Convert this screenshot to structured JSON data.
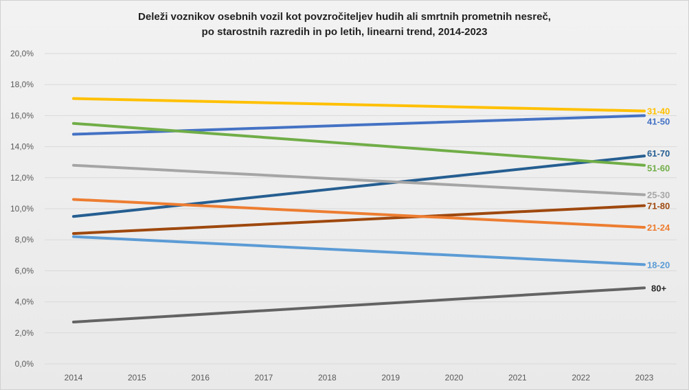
{
  "chart_data": {
    "type": "line",
    "title_line1": "Deleži voznikov osebnih vozil kot povzročiteljev hudih ali smrtnih prometnih nesreč,",
    "title_line2": "po starostnih razredih in po letih, linearni trend, 2014-2023",
    "x": [
      "2014",
      "2015",
      "2016",
      "2017",
      "2018",
      "2019",
      "2020",
      "2021",
      "2022",
      "2023"
    ],
    "y_ticks": [
      "0,0%",
      "2,0%",
      "4,0%",
      "6,0%",
      "8,0%",
      "10,0%",
      "12,0%",
      "14,0%",
      "16,0%",
      "18,0%",
      "20,0%"
    ],
    "ylim": [
      0,
      20
    ],
    "grid": true,
    "series": [
      {
        "name": "31-40",
        "start": 17.1,
        "end": 16.3,
        "color": "#ffc000"
      },
      {
        "name": "41-50",
        "start": 14.8,
        "end": 16.0,
        "color": "#4472c4"
      },
      {
        "name": "61-70",
        "start": 9.5,
        "end": 13.4,
        "color": "#255e91"
      },
      {
        "name": "51-60",
        "start": 15.5,
        "end": 12.8,
        "color": "#70ad47"
      },
      {
        "name": "25-30",
        "start": 12.8,
        "end": 10.9,
        "color": "#a5a5a5"
      },
      {
        "name": "71-80",
        "start": 8.4,
        "end": 10.2,
        "color": "#9e480e"
      },
      {
        "name": "21-24",
        "start": 10.6,
        "end": 8.8,
        "color": "#ed7d31"
      },
      {
        "name": "18-20",
        "start": 8.2,
        "end": 6.4,
        "color": "#5b9bd5"
      },
      {
        "name": "80+",
        "start": 2.7,
        "end": 4.9,
        "color": "#636363"
      }
    ]
  }
}
